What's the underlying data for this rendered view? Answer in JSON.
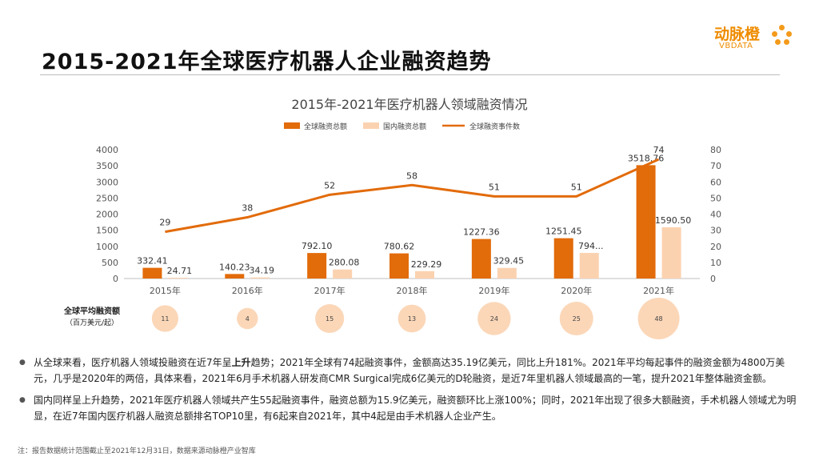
{
  "slide": {
    "title": "2015-2021年全球医疗机器人企业融资趋势",
    "logo_cn": "动脉橙",
    "logo_en": "VBDATA"
  },
  "colors": {
    "global_bar": "#e26b0a",
    "domestic_bar": "#fbd2b0",
    "events_line": "#e26b0a",
    "bubble": "#fbd7b8",
    "logo": "#ef8c00"
  },
  "chart_data": {
    "type": "bar",
    "title": "2015年-2021年医疗机器人领域融资情况",
    "categories": [
      "2015年",
      "2016年",
      "2017年",
      "2018年",
      "2019年",
      "2020年",
      "2021年"
    ],
    "series": [
      {
        "name": "全球融资总额",
        "kind": "bar",
        "axis": "left",
        "values": [
          332.41,
          140.23,
          792.1,
          780.62,
          1227.36,
          1251.45,
          3518.76
        ],
        "labels": [
          "332.41",
          "140.23",
          "792.10",
          "780.62",
          "1227.36",
          "1251.45",
          "3518.76"
        ]
      },
      {
        "name": "国内融资总额",
        "kind": "bar",
        "axis": "left",
        "values": [
          24.71,
          34.19,
          280.08,
          229.29,
          329.45,
          794,
          1590.5
        ],
        "labels": [
          "24.71",
          "34.19",
          "280.08",
          "229.29",
          "329.45",
          "794...",
          "1590.50"
        ]
      },
      {
        "name": "全球融资事件数",
        "kind": "line",
        "axis": "right",
        "values": [
          29,
          38,
          52,
          58,
          51,
          51,
          74
        ],
        "labels": [
          "29",
          "38",
          "52",
          "58",
          "51",
          "51",
          "74"
        ]
      }
    ],
    "ylim_left": [
      0,
      4000
    ],
    "yticks_left": [
      0,
      500,
      1000,
      1500,
      2000,
      2500,
      3000,
      3500,
      4000
    ],
    "ylim_right": [
      0,
      80
    ],
    "yticks_right": [
      0,
      10,
      20,
      30,
      40,
      50,
      60,
      70,
      80
    ],
    "legend_position": "top",
    "grid": false,
    "avg_row": {
      "label": "全球平均融资额",
      "sublabel": "（百万美元/起）",
      "values": [
        11,
        4,
        15,
        13,
        24,
        25,
        48
      ]
    }
  },
  "bullets": [
    {
      "before": "从全球来看，医疗机器人领域投融资在近7年呈",
      "bold": "上升",
      "after": "趋势；2021年全球有74起融资事件，金额高达35.19亿美元，同比上升181%。2021年平均每起事件的融资金额为4800万美元，几乎是2020年的两倍，具体来看，2021年6月手术机器人研发商CMR Surgical完成6亿美元的D轮融资，是近7年里机器人领域最高的一笔，提升2021年整体融资金额。"
    },
    {
      "text": "国内同样呈上升趋势，2021年医疗机器人领域共产生55起融资事件，融资总额为15.9亿美元，融资额环比上涨100%；同时，2021年出现了很多大额融资，手术机器人领域尤为明显，在近7年国内医疗机器人融资总额排名TOP10里，有6起来自2021年，其中4起是由手术机器人企业产生。"
    }
  ],
  "footnote": "注：报告数据统计范围截止至2021年12月31日，数据来源动脉橙产业智库"
}
